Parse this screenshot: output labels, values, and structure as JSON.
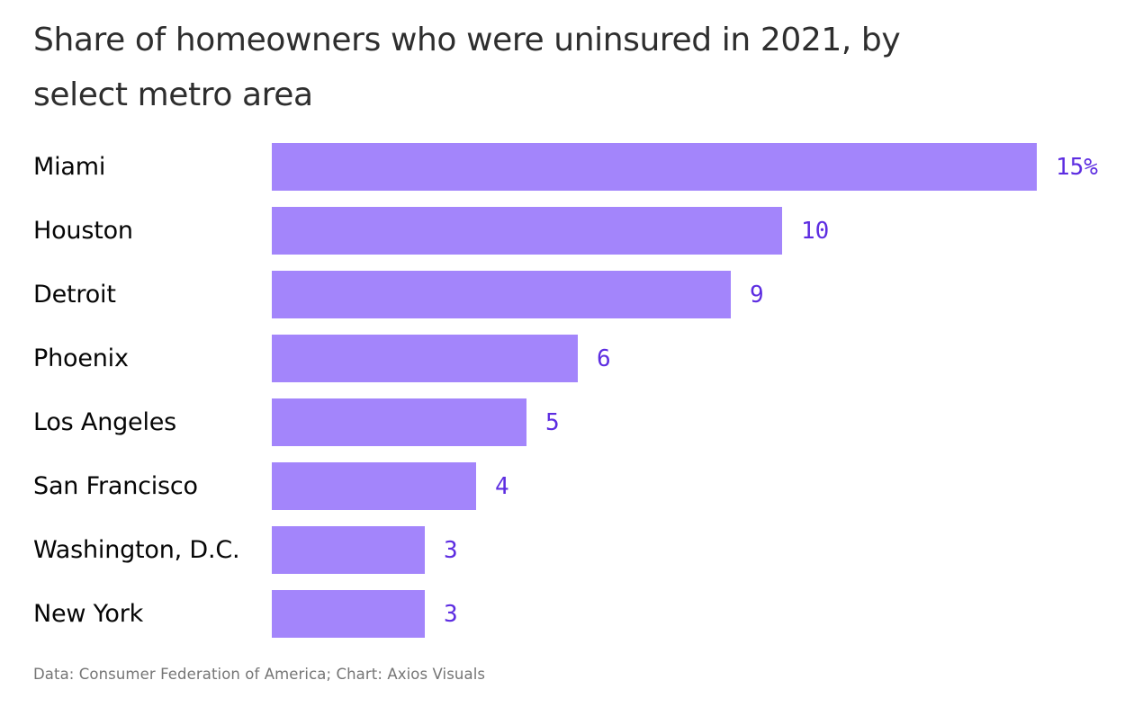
{
  "header": {
    "title": "Share of homeowners who were uninsured in 2021, by select metro area",
    "title_lines": [
      "Share of homeowners who were uninsured in 2021, by",
      "select metro area"
    ]
  },
  "chart_data": {
    "type": "bar",
    "orientation": "horizontal",
    "title": "Share of homeowners who were uninsured in 2021, by select metro area",
    "categories": [
      "Miami",
      "Houston",
      "Detroit",
      "Phoenix",
      "Los Angeles",
      "San Francisco",
      "Washington, D.C.",
      "New York"
    ],
    "values": [
      15,
      10,
      9,
      6,
      5,
      4,
      3,
      3
    ],
    "value_labels": [
      "15%",
      "10",
      "9",
      "6",
      "5",
      "4",
      "3",
      "3"
    ],
    "unit": "percent",
    "xlim": [
      0,
      15
    ],
    "grid": false,
    "legend": false,
    "axis_lines": false,
    "bar_color": "#a385fb",
    "value_label_color": "#5d2de1",
    "category_label_color": "#060606",
    "title_color": "#2e2e2e"
  },
  "footer": {
    "source_text": "Data: Consumer Federation of America; Chart: Axios Visuals",
    "source_color": "#757575"
  }
}
